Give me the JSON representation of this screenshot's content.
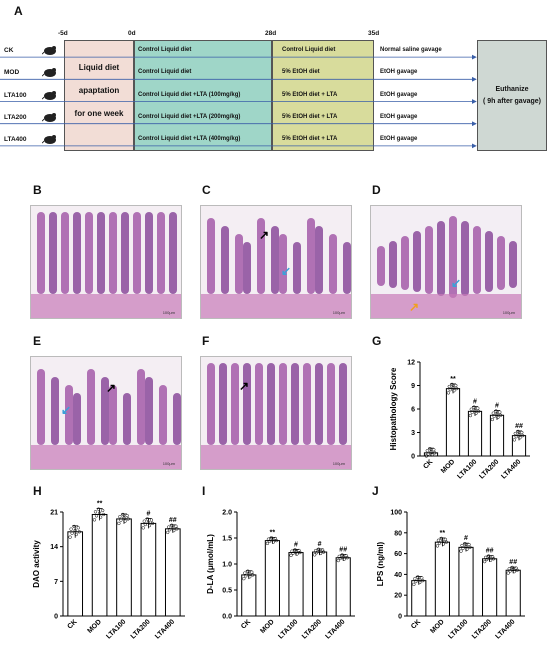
{
  "panelA": {
    "label": "A",
    "timeline": [
      "-5d",
      "0d",
      "28d",
      "35d"
    ],
    "groups": [
      "CK",
      "MOD",
      "LTA100",
      "LTA200",
      "LTA400"
    ],
    "adaptation": [
      "Liquid diet",
      "apaptation",
      "for one week"
    ],
    "phase1": [
      "Control Liquid diet",
      "Control Liquid diet",
      "Control Liquid diet +LTA (100mg/kg)",
      "Control Liquid diet +LTA (200mg/kg)",
      "Control Liquid diet +LTA (400mg/kg)"
    ],
    "phase2": [
      "Control Liquid diet",
      "5% EtOH diet",
      "5% EtOH diet + LTA",
      "5% EtOH diet + LTA",
      "5% EtOH diet + LTA"
    ],
    "phase3": [
      "Normal saline gavage",
      "EtOH gavage",
      "EtOH gavage",
      "EtOH gavage",
      "EtOH gavage"
    ],
    "euthanize": [
      "Euthanize",
      "( 9h after gavage)"
    ],
    "colors": {
      "adapt": "#f2ddd6",
      "phase1": "#9fd6c8",
      "phase2": "#d8dc9c",
      "end": "#cfd8d3",
      "arrow": "#3a5fa8"
    }
  },
  "histology": {
    "labels": [
      "B",
      "C",
      "D",
      "E",
      "F"
    ],
    "scale": "100μm"
  },
  "chart_data": [
    {
      "type": "bar",
      "label": "G",
      "categories": [
        "CK",
        "MOD",
        "LTA100",
        "LTA200",
        "LTA400"
      ],
      "values": [
        0.4,
        8.6,
        5.7,
        5.2,
        2.6
      ],
      "errors": [
        0.6,
        0.6,
        0.6,
        0.6,
        0.6
      ],
      "significance": [
        "",
        "**",
        "#",
        "#",
        "##"
      ],
      "ylabel": "Histopathology Score",
      "xlabel": "",
      "ylim": [
        0,
        12
      ],
      "yticks": [
        0,
        3,
        6,
        9,
        12
      ],
      "grid": false
    },
    {
      "type": "bar",
      "label": "H",
      "categories": [
        "CK",
        "MOD",
        "LTA100",
        "LTA200",
        "LTA400"
      ],
      "values": [
        17.0,
        20.5,
        19.6,
        18.7,
        17.6
      ],
      "errors": [
        1.2,
        1.2,
        1.0,
        1.0,
        0.8
      ],
      "significance": [
        "",
        "**",
        "",
        "#",
        "##"
      ],
      "ylabel": "DAO activity",
      "xlabel": "",
      "ylim": [
        0,
        21
      ],
      "yticks": [
        0,
        7,
        14,
        21
      ],
      "grid": false
    },
    {
      "type": "bar",
      "label": "I",
      "categories": [
        "CK",
        "MOD",
        "LTA100",
        "LTA200",
        "LTA400"
      ],
      "values": [
        0.79,
        1.45,
        1.22,
        1.23,
        1.12
      ],
      "errors": [
        0.08,
        0.06,
        0.06,
        0.06,
        0.06
      ],
      "significance": [
        "",
        "**",
        "#",
        "#",
        "##"
      ],
      "ylabel": "D-LA (μmol/mL)",
      "xlabel": "",
      "ylim": [
        0,
        2.0
      ],
      "yticks": [
        0.0,
        0.5,
        1.0,
        1.5,
        2.0
      ],
      "grid": false
    },
    {
      "type": "bar",
      "label": "J",
      "categories": [
        "CK",
        "MOD",
        "LTA100",
        "LTA200",
        "LTA400"
      ],
      "values": [
        34,
        71,
        66,
        55,
        44
      ],
      "errors": [
        4,
        4,
        4,
        3,
        3
      ],
      "significance": [
        "",
        "**",
        "#",
        "##",
        "##"
      ],
      "ylabel": "LPS (ng/ml)",
      "xlabel": "",
      "ylim": [
        0,
        100
      ],
      "yticks": [
        0,
        20,
        40,
        60,
        80,
        100
      ],
      "grid": false
    }
  ]
}
